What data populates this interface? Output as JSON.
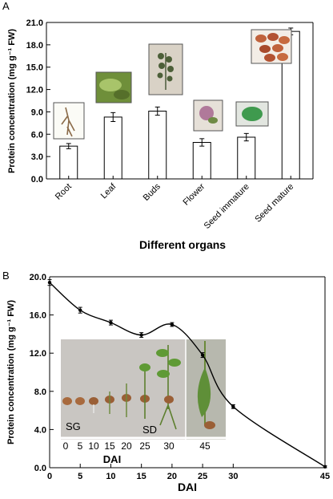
{
  "chart_data": [
    {
      "panel": "A",
      "type": "bar",
      "ylabel": "Protein concentration (mg g⁻¹ FW)",
      "xlabel": "Different organs",
      "ylim": [
        0,
        21
      ],
      "yticks": [
        "0.0",
        "3.0",
        "6.0",
        "9.0",
        "12.0",
        "15.0",
        "18.0",
        "21.0"
      ],
      "categories": [
        "Root",
        "Leaf",
        "Buds",
        "Flower",
        "Seed immature",
        "Seed mature"
      ],
      "values": [
        4.4,
        8.3,
        9.1,
        4.9,
        5.6,
        19.8
      ],
      "errors": [
        0.35,
        0.6,
        0.55,
        0.5,
        0.5,
        0.45
      ],
      "grid": false,
      "inset_photos": [
        "root-photo",
        "leaf-photo",
        "buds-photo",
        "flower-photo",
        "immature-seed-photo",
        "mature-seed-photo"
      ]
    },
    {
      "panel": "B",
      "type": "line",
      "ylabel": "Protein concentration (mg g⁻¹ FW)",
      "xlabel": "DAI",
      "xlim": [
        0,
        45
      ],
      "ylim": [
        0,
        20
      ],
      "xticks": [
        0,
        5,
        10,
        15,
        20,
        25,
        30,
        45
      ],
      "yticks": [
        "0.0",
        "4.0",
        "8.0",
        "12.0",
        "16.0",
        "20.0"
      ],
      "series": [
        {
          "x": [
            0,
            5,
            10,
            15,
            20,
            25,
            30,
            45
          ],
          "y": [
            19.4,
            16.5,
            15.2,
            13.9,
            15.0,
            11.8,
            6.4,
            0.1
          ],
          "errors": [
            0.3,
            0.3,
            0.25,
            0.25,
            0.2,
            0.25,
            0.2,
            0.1
          ]
        }
      ],
      "grid": false,
      "inset": {
        "labels": [
          "SG",
          "SD"
        ],
        "ticks": [
          "0",
          "5",
          "10",
          "15",
          "20",
          "25",
          "30",
          "45"
        ],
        "xlabel": "DAI"
      }
    }
  ]
}
